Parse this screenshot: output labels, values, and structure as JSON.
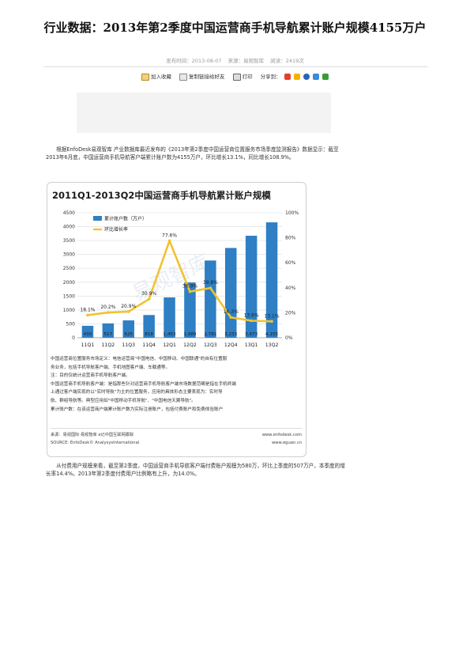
{
  "article": {
    "title": "行业数据：2013年第2季度中国运营商手机导航累计账户规模4155万户",
    "meta": {
      "date": "发布时间：2013-08-07",
      "source": "来源：易观智库",
      "views": "阅读：2419次"
    },
    "tools": {
      "favorite": "加入收藏",
      "copy_link": "复制链接给好友",
      "print": "打印",
      "share": "分享到："
    },
    "para1": "根据EnfoDesk易观智库 产业数据库最近发布的《2013年第2季度中国运营商位置服务市场季度监测报告》数据显示：截至2013年6月底，中国运营商手机导航客户端累计账户数为4155万户，环比增长13.1%，同比增长108.9%。",
    "para2": "从付费用户规模来看，截至第2季度，中国运营商手机导航客户端付费账户规模为580万，环比上季度的507万户，本季度的增长率14.4%。2013年第2季度付费用户比例略有上升，为14.0%。"
  },
  "chart_data": {
    "type": "bar",
    "title": "2011Q1-2013Q2中国运营商手机导航累计账户规模",
    "categories": [
      "11Q1",
      "11Q2",
      "11Q3",
      "11Q4",
      "12Q1",
      "12Q2",
      "12Q3",
      "12Q4",
      "13Q1",
      "13Q2"
    ],
    "series": [
      {
        "name": "累计账户数（万户）",
        "type": "bar",
        "axis": "left",
        "values": [
          430,
          517,
          625,
          818,
          1453,
          1989,
          2781,
          3233,
          3673,
          4155
        ],
        "labels": [
          "430",
          "517",
          "625",
          "818",
          "1,453",
          "1,989",
          "2,781",
          "3,233",
          "3,673",
          "4,155"
        ]
      },
      {
        "name": "环比增长率",
        "type": "line",
        "axis": "right",
        "values": [
          18.1,
          20.2,
          20.9,
          30.9,
          77.6,
          36.9,
          39.8,
          16.3,
          13.6,
          13.1
        ],
        "labels": [
          "18.1%",
          "20.2%",
          "20.9%",
          "30.9%",
          "77.6%",
          "36.9%",
          "39.8%",
          "16.3%",
          "13.6%",
          "13.1%"
        ]
      }
    ],
    "ylim_left": [
      0,
      4500
    ],
    "yticks_left": [
      "0",
      "500",
      "1000",
      "1500",
      "2000",
      "2500",
      "3000",
      "3500",
      "4000",
      "4500"
    ],
    "ylim_right": [
      0,
      100
    ],
    "yticks_right": [
      "0%",
      "20%",
      "40%",
      "60%",
      "80%",
      "100%"
    ],
    "watermark": "易观智库",
    "legend_position": "top-left",
    "grid": true,
    "colors": {
      "bar": "#2e7fc4",
      "line": "#f2c230",
      "label": "#1a1a1a"
    }
  },
  "figure": {
    "notes": [
      "中国运营商位置服务市场定义：电信运营商\"中国电信、中国移动、中国联通\"的自有位置服",
      "务业务，包括手机导航客户端、手机地图客户端、车载通等。",
      "注：目的仅统计运营商手机导航客户端。",
      "中国运营商手机导航客户端：是指那些针对运营商手机导航客户端市场数据范畴是指在手机终端",
      "上通过客户端实现的以\"实时导航\"为主的位置服务，应用的具体形态主要表现为：实时导",
      "航、群组导航等。典型应用如\"中国移动手机导航\"、\"中国电信天翼导航\"。",
      "累计账户数：在该运营商户端累计账户数为实际注册账户，包括付费账户和免费体验账户"
    ],
    "source_cn": "来源：易观国际·易观智库 e记中国互联网跟踪",
    "source_url1": "www.enfodesk.com",
    "source_en": "SOURCE: EnfoDesk© AnalysysInternational",
    "source_url2": "www.eguan.cn"
  }
}
